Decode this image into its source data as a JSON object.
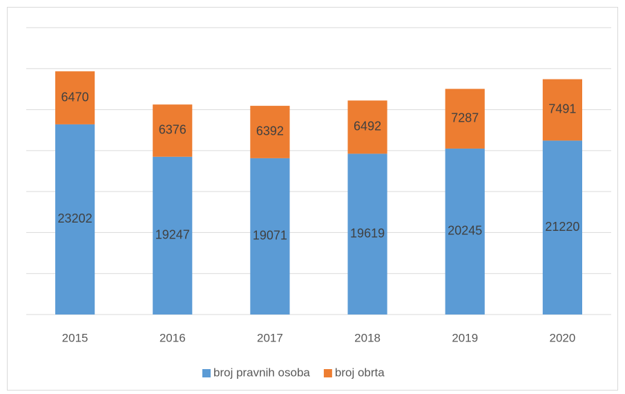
{
  "chart_data": {
    "type": "bar",
    "stacked": true,
    "categories": [
      "2015",
      "2016",
      "2017",
      "2018",
      "2019",
      "2020"
    ],
    "series": [
      {
        "name": "broj pravnih osoba",
        "color": "#5b9bd5",
        "values": [
          23202,
          19247,
          19071,
          19619,
          20245,
          21220
        ]
      },
      {
        "name": "broj obrta",
        "color": "#ed7d31",
        "values": [
          6470,
          6376,
          6392,
          6492,
          7287,
          7491
        ]
      }
    ],
    "ylim": [
      0,
      35000
    ],
    "yticks": [
      0,
      5000,
      10000,
      15000,
      20000,
      25000,
      30000,
      35000
    ],
    "grid": true,
    "legend": "bottom"
  }
}
